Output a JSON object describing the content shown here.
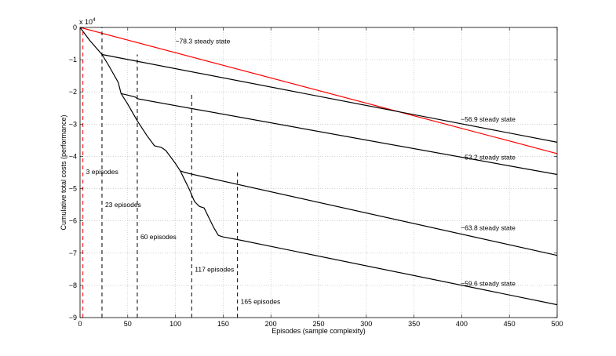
{
  "chart_data": {
    "type": "line",
    "xlabel": "Episodes (sample complexity)",
    "ylabel": "Cumulative total costs (performance)",
    "exponent_label": "x 10",
    "exponent_power": "4",
    "xlim": [
      0,
      500
    ],
    "ylim": [
      -90000,
      0
    ],
    "grid": true,
    "x_ticks": [
      0,
      50,
      100,
      150,
      200,
      250,
      300,
      350,
      400,
      450,
      500
    ],
    "y_ticks": [
      0,
      -10000,
      -20000,
      -30000,
      -40000,
      -50000,
      -60000,
      -70000,
      -80000,
      -90000
    ],
    "y_tick_labels": [
      "0",
      "−1",
      "−2",
      "−3",
      "−4",
      "−5",
      "−6",
      "−7",
      "−8",
      "−9"
    ],
    "colors": {
      "learning": "#000000",
      "reference": "#ff0000"
    },
    "series": [
      {
        "color": "#ff0000",
        "points": [
          [
            0,
            0
          ],
          [
            500,
            -39150
          ]
        ]
      },
      {
        "color": "#000000",
        "points": [
          [
            0,
            0
          ],
          [
            3,
            -1200
          ],
          [
            10,
            -4000
          ],
          [
            23,
            -8400
          ],
          [
            500,
            -35600
          ]
        ]
      },
      {
        "color": "#000000",
        "points": [
          [
            23,
            -8400
          ],
          [
            30,
            -11800
          ],
          [
            40,
            -17000
          ],
          [
            43,
            -20500
          ],
          [
            50,
            -21000
          ],
          [
            58,
            -21600
          ],
          [
            60,
            -22100
          ],
          [
            500,
            -45600
          ]
        ]
      },
      {
        "color": "#000000",
        "points": [
          [
            43,
            -20500
          ],
          [
            50,
            -23800
          ],
          [
            60,
            -29000
          ],
          [
            70,
            -33500
          ],
          [
            78,
            -36700
          ],
          [
            85,
            -37200
          ],
          [
            90,
            -38200
          ],
          [
            100,
            -42200
          ],
          [
            105,
            -44500
          ],
          [
            110,
            -45000
          ],
          [
            117,
            -45500
          ],
          [
            500,
            -70700
          ]
        ]
      },
      {
        "color": "#000000",
        "points": [
          [
            105,
            -44500
          ],
          [
            110,
            -47500
          ],
          [
            115,
            -50500
          ],
          [
            117,
            -52000
          ],
          [
            120,
            -54000
          ],
          [
            125,
            -55500
          ],
          [
            130,
            -56000
          ],
          [
            135,
            -59000
          ],
          [
            140,
            -62000
          ],
          [
            145,
            -64500
          ],
          [
            150,
            -65000
          ],
          [
            165,
            -65800
          ],
          [
            500,
            -86000
          ]
        ]
      }
    ],
    "episode_markers": [
      {
        "x": 3,
        "label": "3 episodes",
        "color": "#ff0000",
        "label_y": -44800
      },
      {
        "x": 23,
        "label": "23 episodes",
        "color": "#000000",
        "label_y": -55000
      },
      {
        "x": 60,
        "label": "60 episodes",
        "color": "#000000",
        "label_y": -65000
      },
      {
        "x": 117,
        "label": "117 episodes",
        "color": "#000000",
        "label_y": -75000
      },
      {
        "x": 165,
        "label": "165 episodes",
        "color": "#000000",
        "label_y": -85000
      }
    ],
    "steady_state_labels": [
      {
        "text": "−78.3 steady state",
        "x": 100,
        "y": -4300
      },
      {
        "text": "−56.9 steady state",
        "x": 399,
        "y": -28500
      },
      {
        "text": "−53.2 steady state",
        "x": 399,
        "y": -40300
      },
      {
        "text": "−63.8 steady state",
        "x": 399,
        "y": -62200
      },
      {
        "text": "−59.6 steady state",
        "x": 399,
        "y": -79400
      }
    ]
  }
}
